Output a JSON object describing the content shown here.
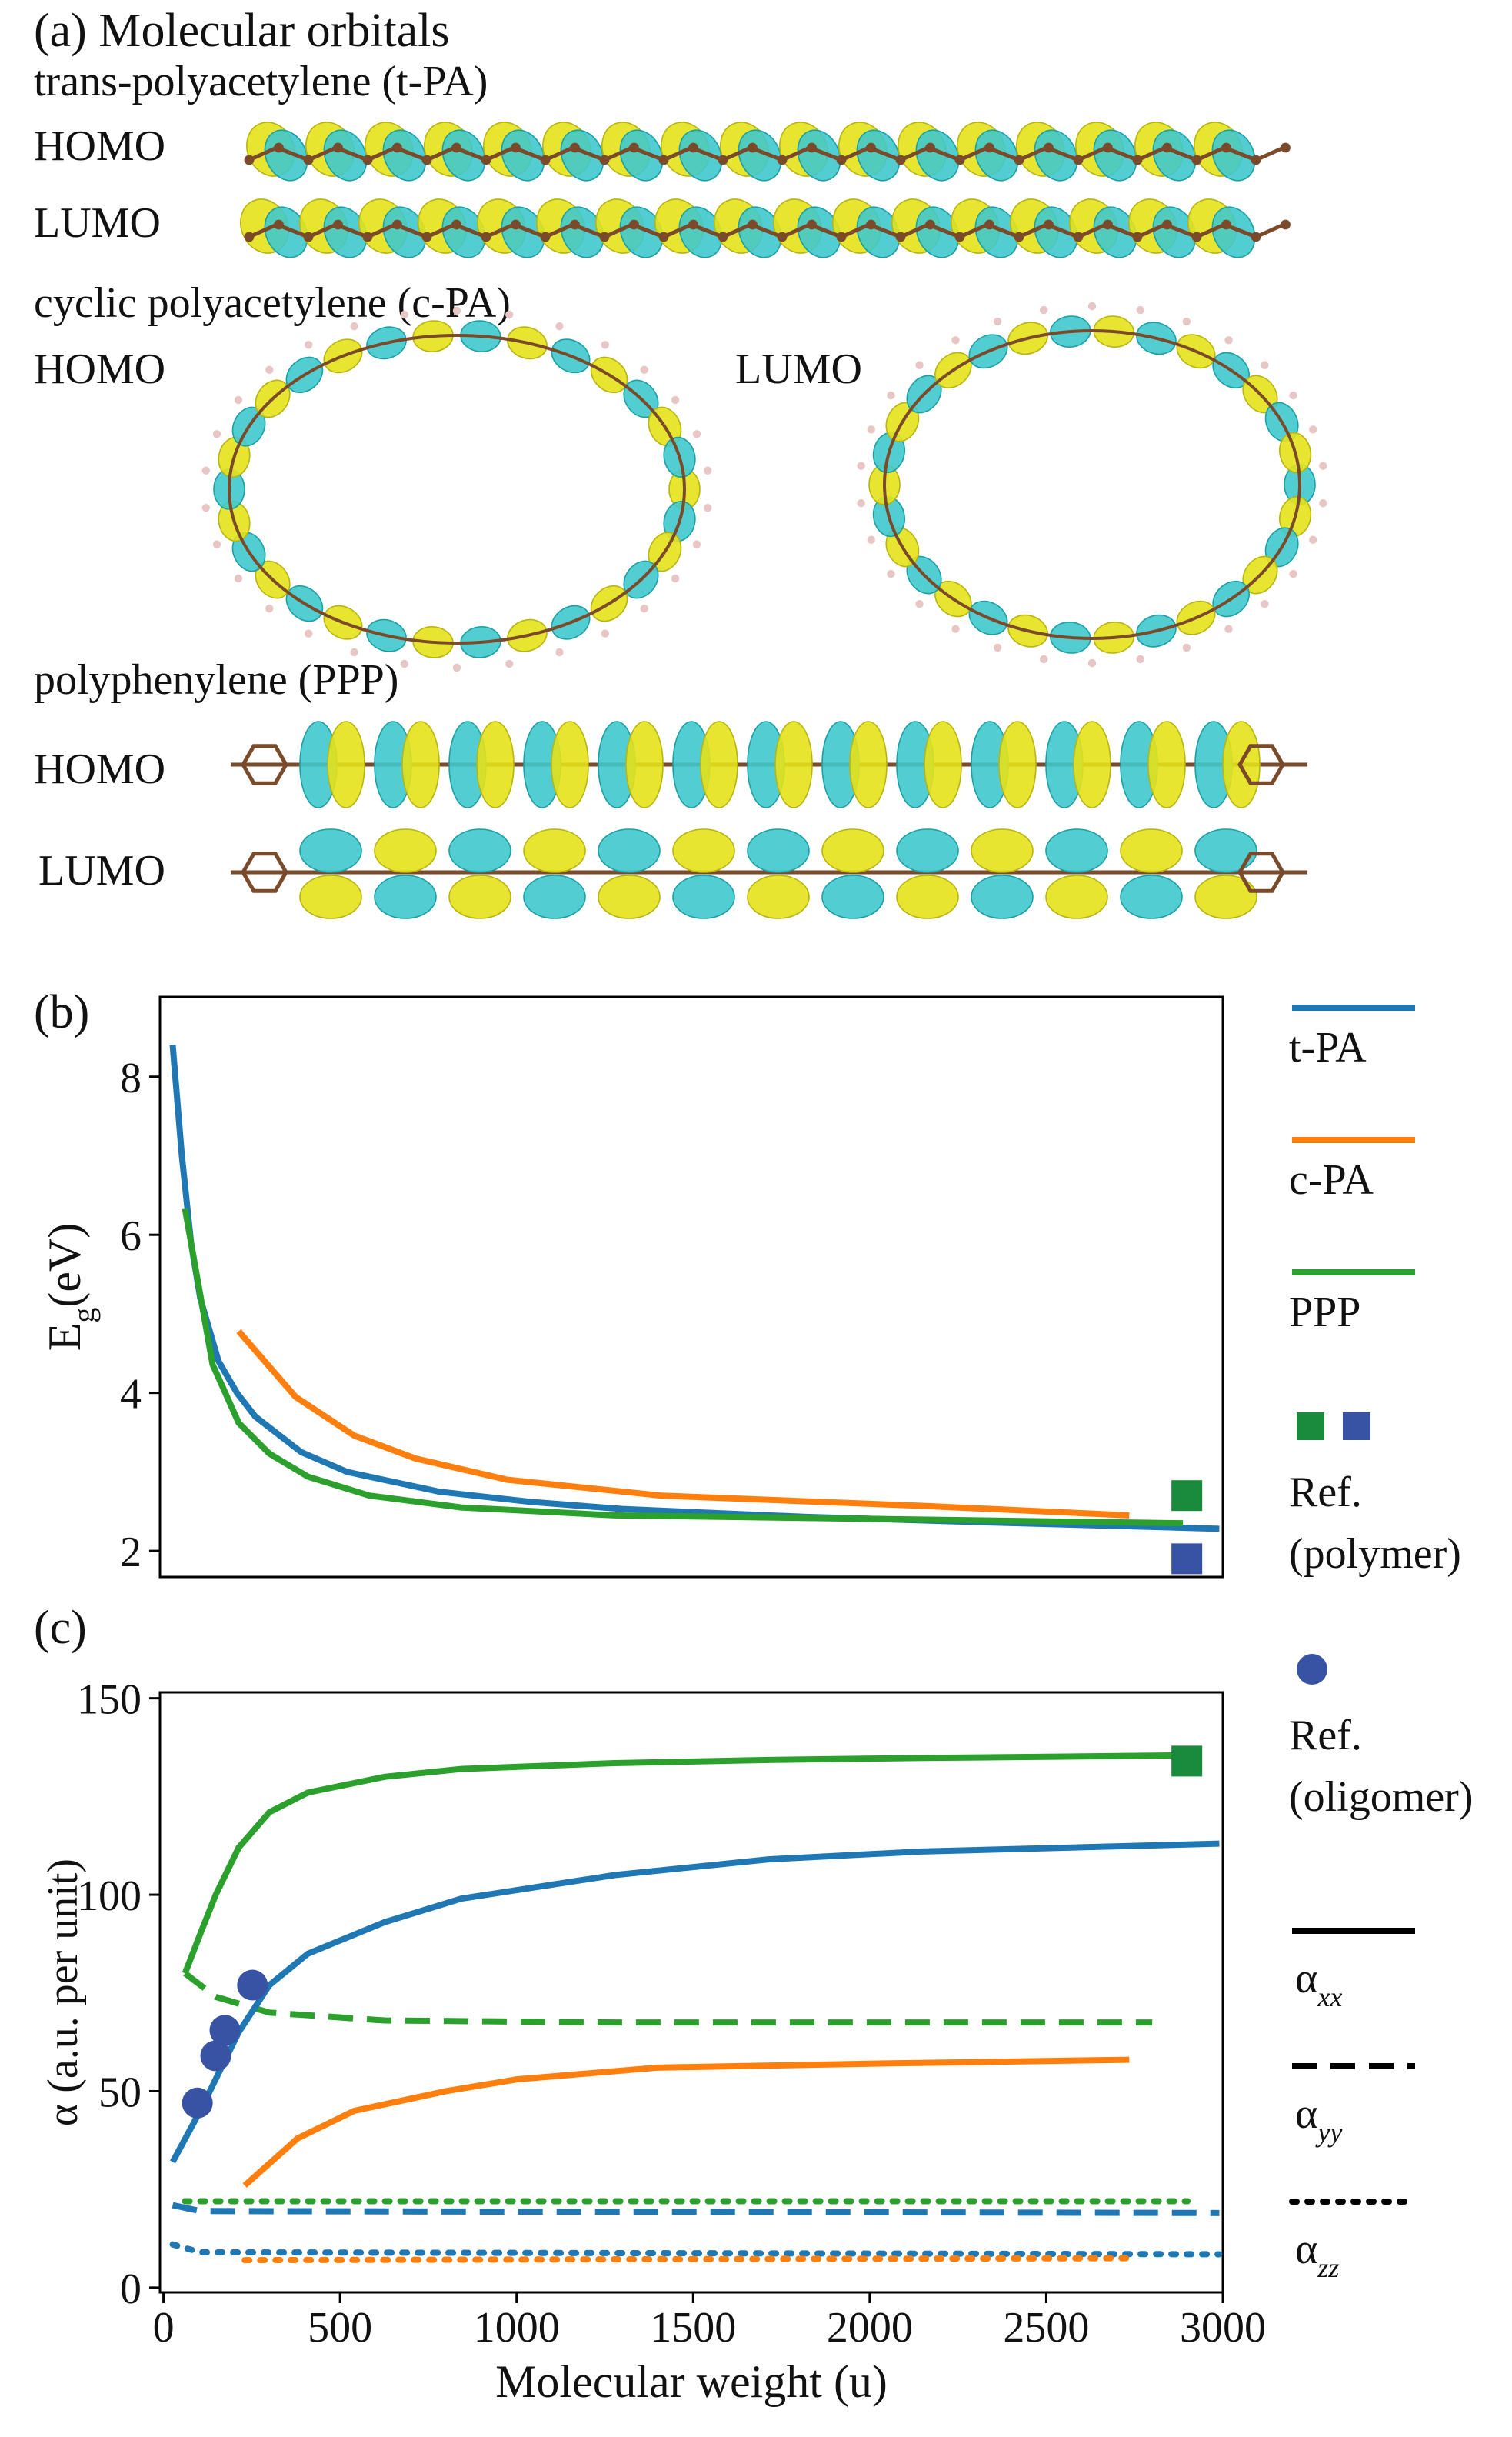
{
  "panel_a": {
    "title": "(a) Molecular orbitals",
    "sections": [
      {
        "title": "trans-polyacetylene (t-PA)",
        "labels": [
          "HOMO",
          "LUMO"
        ]
      },
      {
        "title": "cyclic polyacetylene (c-PA)",
        "labels": [
          "HOMO",
          "LUMO"
        ]
      },
      {
        "title": "polyphenylene (PPP)",
        "labels": [
          "HOMO",
          "LUMO"
        ]
      }
    ]
  },
  "chart_data": [
    {
      "type": "line",
      "panel": "(b)",
      "ylabel": {
        "main": "E",
        "sub": "g",
        "rest": "(eV)"
      },
      "xlim": [
        -10,
        3000
      ],
      "ylim": [
        1.67,
        9.01
      ],
      "yticks": [
        2,
        4,
        6,
        8
      ],
      "series": [
        {
          "name": "t-PA",
          "color": "#1f77b4",
          "dash": "solid",
          "x": [
            26,
            52,
            78,
            104,
            156,
            208,
            260,
            390,
            520,
            780,
            1040,
            1300,
            1820,
            2340,
            2990
          ],
          "values": [
            8.4,
            7.0,
            5.9,
            5.2,
            4.4,
            4.0,
            3.7,
            3.25,
            3.0,
            2.75,
            2.62,
            2.53,
            2.43,
            2.36,
            2.28
          ]
        },
        {
          "name": "c-PA",
          "color": "#ff7f0e",
          "dash": "solid",
          "x": [
            213,
            374,
            540,
            713,
            974,
            1409,
            2148,
            2735
          ],
          "values": [
            4.78,
            3.95,
            3.46,
            3.17,
            2.9,
            2.7,
            2.57,
            2.45
          ]
        },
        {
          "name": "PPP",
          "color": "#2ca02c",
          "dash": "solid",
          "x": [
            61,
            139,
            213,
            300,
            409,
            583,
            843,
            1278,
            2887
          ],
          "values": [
            6.33,
            4.36,
            3.62,
            3.23,
            2.94,
            2.7,
            2.55,
            2.45,
            2.35
          ]
        }
      ],
      "references": [
        {
          "name": "Ref. (polymer)",
          "marker": "square",
          "x": [
            2898,
            2898
          ],
          "values": [
            2.7,
            1.9
          ],
          "colors": [
            "#1a8a3c",
            "#3953a4"
          ]
        }
      ]
    },
    {
      "type": "line",
      "panel": "(c)",
      "ylabel": "α (a.u. per unit)",
      "xlabel": "Molecular weight (u)",
      "xlim": [
        -10,
        3000
      ],
      "ylim": [
        -1.2,
        151.5
      ],
      "xticks": [
        0,
        500,
        1000,
        1500,
        2000,
        2500,
        3000
      ],
      "yticks": [
        0,
        50,
        100,
        150
      ],
      "series": [
        {
          "color": "#2ca02c",
          "dash": "solid",
          "x": [
            61,
            104,
            148,
            213,
            300,
            409,
            626,
            843,
            1278,
            1713,
            2148,
            2930
          ],
          "values": [
            80,
            90,
            100,
            112,
            121,
            126,
            130,
            132,
            133.5,
            134.3,
            134.8,
            135.5
          ]
        },
        {
          "color": "#2ca02c",
          "dash": "dashed",
          "x": [
            61,
            148,
            300,
            626,
            1278,
            2800
          ],
          "values": [
            80,
            74,
            70,
            68,
            67.5,
            67.5
          ]
        },
        {
          "color": "#2ca02c",
          "dash": "dotted",
          "x": [
            61,
            2900
          ],
          "values": [
            22,
            22
          ]
        },
        {
          "color": "#1f77b4",
          "dash": "solid",
          "x": [
            26,
            104,
            213,
            300,
            409,
            626,
            843,
            1278,
            1713,
            2148,
            2990
          ],
          "values": [
            32,
            45,
            65,
            77,
            85,
            93,
            99,
            105,
            109,
            111,
            113
          ]
        },
        {
          "color": "#1f77b4",
          "dash": "dashed",
          "x": [
            26,
            104,
            2990
          ],
          "values": [
            21,
            19.5,
            19
          ]
        },
        {
          "color": "#1f77b4",
          "dash": "dotted",
          "x": [
            26,
            104,
            2990
          ],
          "values": [
            11,
            9,
            8.5
          ]
        },
        {
          "color": "#ff7f0e",
          "dash": "solid",
          "x": [
            230,
            380,
            540,
            800,
            1000,
            1400,
            2000,
            2735
          ],
          "values": [
            26,
            38,
            45,
            50,
            53,
            56,
            57,
            58
          ]
        },
        {
          "color": "#ff7f0e",
          "dash": "dotted",
          "x": [
            230,
            2735
          ],
          "values": [
            7,
            7.5
          ]
        }
      ],
      "references": [
        {
          "marker": "square",
          "x": [
            2898
          ],
          "values": [
            134
          ],
          "colors": [
            "#1a8a3c"
          ]
        },
        {
          "name": "Ref. (oligomer)",
          "marker": "circle",
          "x": [
            96,
            148,
            174,
            252
          ],
          "values": [
            47,
            59,
            65.5,
            77
          ],
          "colors": [
            "#3953a4"
          ]
        }
      ],
      "line_styles": [
        {
          "dash": "solid",
          "label": {
            "main": "α",
            "sub": "xx"
          }
        },
        {
          "dash": "dashed",
          "label": {
            "main": "α",
            "sub": "yy"
          }
        },
        {
          "dash": "dotted",
          "label": {
            "main": "α",
            "sub": "zz"
          }
        }
      ]
    }
  ]
}
